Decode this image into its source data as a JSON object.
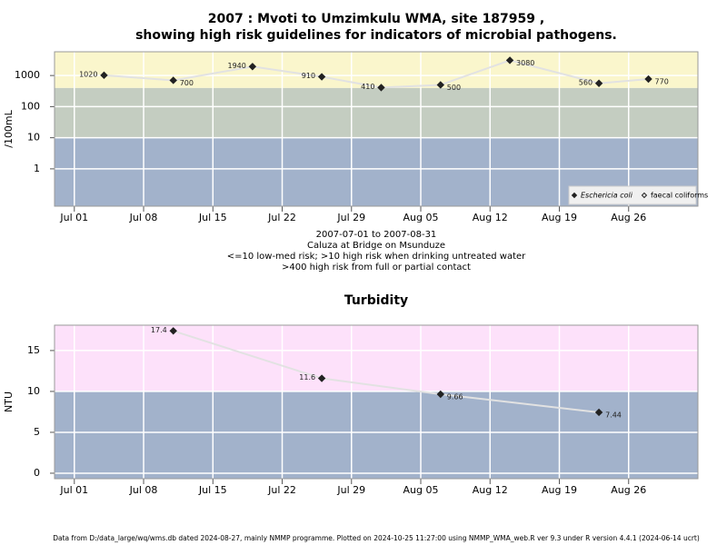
{
  "chart_data": [
    {
      "type": "line",
      "title": [
        "2007 : Mvoti to Umzimkulu WMA, site 187959 ,",
        "showing high risk guidelines for indicators of microbial pathogens."
      ],
      "y_label": "/100mL",
      "notes": [
        "2007-07-01 to 2007-08-31",
        "Caluza at Bridge on Msunduze",
        "<=10 low-med risk; >10 high risk when drinking untreated water",
        ">400 high risk from full or partial contact"
      ],
      "log_y": true,
      "ylim": [
        0.063,
        5800
      ],
      "yticks": [
        1,
        10,
        100,
        1000
      ],
      "xlim": [
        "2007-06-29",
        "2007-09-02"
      ],
      "xticks": [
        {
          "value": "2007-07-01",
          "label": "Jul 01"
        },
        {
          "value": "2007-07-08",
          "label": "Jul 08"
        },
        {
          "value": "2007-07-15",
          "label": "Jul 15"
        },
        {
          "value": "2007-07-22",
          "label": "Jul 22"
        },
        {
          "value": "2007-07-29",
          "label": "Jul 29"
        },
        {
          "value": "2007-08-05",
          "label": "Aug 05"
        },
        {
          "value": "2007-08-12",
          "label": "Aug 12"
        },
        {
          "value": "2007-08-19",
          "label": "Aug 19"
        },
        {
          "value": "2007-08-26",
          "label": "Aug 26"
        }
      ],
      "bands": {
        "thresholds": [
          10,
          400
        ],
        "colors": [
          "#a2b2cb",
          "#c4cdc1",
          "#faf6cc"
        ]
      },
      "grid": true,
      "line_color": "#e2e2e2",
      "legend": "bottom-right",
      "x": [
        "2007-07-04",
        "2007-07-11",
        "2007-07-19",
        "2007-07-26",
        "2007-08-01",
        "2007-08-07",
        "2007-08-14",
        "2007-08-23",
        "2007-08-28"
      ],
      "series": [
        {
          "name": "Eschericia coli",
          "color": "#222222",
          "marker": "filled",
          "values": [
            1020,
            700,
            1940,
            910,
            410,
            500,
            3080,
            560,
            770
          ]
        },
        {
          "name": "faecal coliforms",
          "color": "#222222",
          "marker": "open",
          "values": [
            null,
            null,
            null,
            null,
            null,
            null,
            null,
            null,
            null
          ]
        }
      ]
    },
    {
      "type": "line",
      "title": [
        "Turbidity"
      ],
      "y_label": "NTU",
      "log_y": false,
      "ylim": [
        -0.67,
        18.1
      ],
      "yticks": [
        0,
        5,
        10,
        15
      ],
      "xlim": [
        "2007-06-29",
        "2007-09-02"
      ],
      "xticks": [
        {
          "value": "2007-07-01",
          "label": "Jul 01"
        },
        {
          "value": "2007-07-08",
          "label": "Jul 08"
        },
        {
          "value": "2007-07-15",
          "label": "Jul 15"
        },
        {
          "value": "2007-07-22",
          "label": "Jul 22"
        },
        {
          "value": "2007-07-29",
          "label": "Jul 29"
        },
        {
          "value": "2007-08-05",
          "label": "Aug 05"
        },
        {
          "value": "2007-08-12",
          "label": "Aug 12"
        },
        {
          "value": "2007-08-19",
          "label": "Aug 19"
        },
        {
          "value": "2007-08-26",
          "label": "Aug 26"
        }
      ],
      "bands": {
        "thresholds": [
          10
        ],
        "colors": [
          "#a2b2cb",
          "#fde1fa"
        ]
      },
      "grid": true,
      "line_color": "#e2e2e2",
      "x": [
        "2007-07-11",
        "2007-07-26",
        "2007-08-07",
        "2007-08-23"
      ],
      "series": [
        {
          "color": "#222222",
          "marker": "filled",
          "values": [
            17.4,
            11.6,
            9.66,
            7.44
          ]
        }
      ]
    }
  ],
  "footer": "Data from D:/data_large/wq/wms.db dated 2024-08-27, mainly NMMP programme. Plotted on 2024-10-25 11:27:00 using NMMP_WMA_web.R ver 9.3 under R version 4.4.1 (2024-06-14 ucrt)"
}
